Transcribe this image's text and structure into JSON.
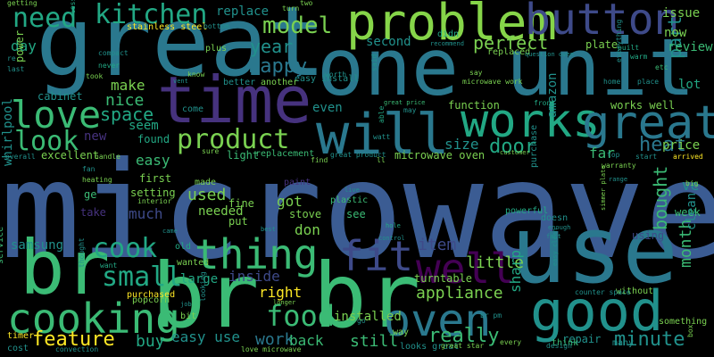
{
  "background_color": "#000000",
  "words": [
    {
      "text": "microwave",
      "color": "#3b5c93"
    },
    {
      "text": "great",
      "color": "#2a788e"
    },
    {
      "text": "one unit",
      "color": "#2a788e"
    },
    {
      "text": "time",
      "color": "#46327e"
    },
    {
      "text": "use",
      "color": "#2a788e"
    },
    {
      "text": "br",
      "color": "#3bbb75"
    },
    {
      "text": "br br",
      "color": "#3bbb75"
    },
    {
      "text": "problem",
      "color": "#86d549"
    },
    {
      "text": "button",
      "color": "#3e4a89"
    },
    {
      "text": "good",
      "color": "#21918c"
    },
    {
      "text": "will",
      "color": "#2a788e"
    },
    {
      "text": "works",
      "color": "#22a884"
    },
    {
      "text": "great",
      "color": "#2a788e"
    },
    {
      "text": "love",
      "color": "#3bbb75"
    },
    {
      "text": "cooking",
      "color": "#3bbb75"
    },
    {
      "text": "oven",
      "color": "#2a788e"
    },
    {
      "text": "well",
      "color": "#440154"
    },
    {
      "text": "fit",
      "color": "#3e4a89"
    },
    {
      "text": "thing",
      "color": "#3bbb75"
    },
    {
      "text": "small",
      "color": "#22a884"
    },
    {
      "text": "kitchen",
      "color": "#22a884"
    },
    {
      "text": "product",
      "color": "#7ad151"
    },
    {
      "text": "look",
      "color": "#3bbb75"
    },
    {
      "text": "need",
      "color": "#22a884"
    },
    {
      "text": "model",
      "color": "#7ad151"
    },
    {
      "text": "food",
      "color": "#3bbb75"
    },
    {
      "text": "cook",
      "color": "#22a884"
    },
    {
      "text": "feature",
      "color": "#fde725"
    },
    {
      "text": "minute",
      "color": "#21918c"
    },
    {
      "text": "really",
      "color": "#3bbb75"
    },
    {
      "text": "perfect",
      "color": "#7ad151"
    },
    {
      "text": "door",
      "color": "#22a884"
    },
    {
      "text": "heat",
      "color": "#2a788e"
    },
    {
      "text": "happy",
      "color": "#2a788e"
    },
    {
      "text": "space",
      "color": "#22a884"
    },
    {
      "text": "nice",
      "color": "#3bbb75"
    },
    {
      "text": "year",
      "color": "#21918c"
    },
    {
      "text": "part",
      "color": "#21918c"
    },
    {
      "text": "bought",
      "color": "#3bbb75"
    },
    {
      "text": "month",
      "color": "#3bbb75"
    },
    {
      "text": "appliance",
      "color": "#7ad151"
    },
    {
      "text": "right",
      "color": "#fde725"
    },
    {
      "text": "work",
      "color": "#2a788e"
    },
    {
      "text": "back",
      "color": "#3bbb75"
    },
    {
      "text": "still",
      "color": "#3bbb75"
    },
    {
      "text": "easy use",
      "color": "#21918c"
    },
    {
      "text": "buy",
      "color": "#22a884"
    },
    {
      "text": "used",
      "color": "#7ad151"
    },
    {
      "text": "much",
      "color": "#3e4a89"
    },
    {
      "text": "little",
      "color": "#7ad151"
    },
    {
      "text": "item",
      "color": "#3e4a89"
    },
    {
      "text": "sharp",
      "color": "#22a884"
    },
    {
      "text": "got",
      "color": "#7ad151"
    },
    {
      "text": "don",
      "color": "#7ad151"
    },
    {
      "text": "inside",
      "color": "#3e4a89"
    },
    {
      "text": "large",
      "color": "#22a884"
    },
    {
      "text": "size",
      "color": "#21918c"
    },
    {
      "text": "far",
      "color": "#3bbb75"
    },
    {
      "text": "price",
      "color": "#7ad151"
    },
    {
      "text": "seem",
      "color": "#22a884"
    },
    {
      "text": "make",
      "color": "#7ad151"
    },
    {
      "text": "even",
      "color": "#21918c"
    },
    {
      "text": "easy",
      "color": "#3bbb75"
    },
    {
      "text": "new",
      "color": "#46327e"
    },
    {
      "text": "day",
      "color": "#22a884"
    },
    {
      "text": "second",
      "color": "#21918c"
    },
    {
      "text": "review",
      "color": "#3bbb75"
    },
    {
      "text": "now",
      "color": "#7ad151"
    },
    {
      "text": "issue",
      "color": "#7ad151"
    },
    {
      "text": "ve",
      "color": "#21918c"
    },
    {
      "text": "replace",
      "color": "#21918c"
    },
    {
      "text": "lot",
      "color": "#22a884"
    },
    {
      "text": "amazon",
      "color": "#21918c"
    },
    {
      "text": "samsung",
      "color": "#21918c"
    },
    {
      "text": "installed",
      "color": "#7ad151"
    },
    {
      "text": "needed",
      "color": "#7ad151"
    },
    {
      "text": "week",
      "color": "#3bbb75"
    },
    {
      "text": "clean",
      "color": "#21918c"
    },
    {
      "text": "function",
      "color": "#7ad151"
    },
    {
      "text": "works well",
      "color": "#7ad151"
    },
    {
      "text": "microwave oven",
      "color": "#7ad151"
    },
    {
      "text": "put",
      "color": "#7ad151"
    },
    {
      "text": "stove",
      "color": "#7ad151"
    },
    {
      "text": "plate",
      "color": "#7ad151"
    },
    {
      "text": "setting",
      "color": "#7ad151"
    },
    {
      "text": "whirlpool",
      "color": "#21918c"
    },
    {
      "text": "light",
      "color": "#3bbb75"
    },
    {
      "text": "found",
      "color": "#22a884"
    },
    {
      "text": "first",
      "color": "#7ad151"
    },
    {
      "text": "excellent",
      "color": "#7ad151"
    },
    {
      "text": "replacement",
      "color": "#3bbb75"
    },
    {
      "text": "using",
      "color": "#3e4a89"
    },
    {
      "text": "ge",
      "color": "#3bbb75"
    },
    {
      "text": "take",
      "color": "#46327e"
    },
    {
      "text": "fine",
      "color": "#7ad151"
    },
    {
      "text": "paint",
      "color": "#46327e"
    },
    {
      "text": "see",
      "color": "#3bbb75"
    },
    {
      "text": "plastic",
      "color": "#3bbb75"
    },
    {
      "text": "turntable",
      "color": "#7ad151"
    },
    {
      "text": "repair",
      "color": "#21918c"
    },
    {
      "text": "looks great",
      "color": "#21918c"
    },
    {
      "text": "stainless steel",
      "color": "#fde725"
    },
    {
      "text": "didn",
      "color": "#22a884"
    },
    {
      "text": "replaced",
      "color": "#7ad151"
    },
    {
      "text": "easy install",
      "color": "#21918c"
    },
    {
      "text": "plus",
      "color": "#7ad151"
    },
    {
      "text": "cabinet",
      "color": "#21918c"
    },
    {
      "text": "power",
      "color": "#7ad151"
    },
    {
      "text": "popcorn",
      "color": "#7ad151"
    },
    {
      "text": "another",
      "color": "#7ad151"
    },
    {
      "text": "better",
      "color": "#21918c"
    },
    {
      "text": "come",
      "color": "#21918c"
    },
    {
      "text": "made",
      "color": "#7ad151"
    },
    {
      "text": "old",
      "color": "#22a884"
    },
    {
      "text": "wanted",
      "color": "#7ad151"
    },
    {
      "text": "purchased",
      "color": "#fde725"
    },
    {
      "text": "bit",
      "color": "#7ad151"
    },
    {
      "text": "timer",
      "color": "#fde725"
    },
    {
      "text": "cost",
      "color": "#21918c"
    },
    {
      "text": "way",
      "color": "#7ad151"
    },
    {
      "text": "go",
      "color": "#21918c"
    },
    {
      "text": "without",
      "color": "#7ad151"
    },
    {
      "text": "something",
      "color": "#7ad151"
    },
    {
      "text": "think",
      "color": "#3bbb75"
    },
    {
      "text": "many",
      "color": "#21918c"
    },
    {
      "text": "counter space",
      "color": "#21918c"
    },
    {
      "text": "purchase",
      "color": "#21918c"
    },
    {
      "text": "warranty",
      "color": "#7ad151"
    },
    {
      "text": "arrived",
      "color": "#fde725"
    },
    {
      "text": "powerful",
      "color": "#22a884"
    },
    {
      "text": "interior",
      "color": "#7ad151"
    },
    {
      "text": "fan",
      "color": "#21918c"
    },
    {
      "text": "heating",
      "color": "#7ad151"
    },
    {
      "text": "overall",
      "color": "#21918c"
    },
    {
      "text": "handle",
      "color": "#7ad151"
    },
    {
      "text": "service",
      "color": "#3bbb75"
    },
    {
      "text": "thought",
      "color": "#21918c"
    },
    {
      "text": "want",
      "color": "#22a884"
    },
    {
      "text": "convection",
      "color": "#21918c"
    },
    {
      "text": "love microwave",
      "color": "#7ad151"
    },
    {
      "text": "great star",
      "color": "#7ad151"
    },
    {
      "text": "br pm",
      "color": "#21918c"
    },
    {
      "text": "every",
      "color": "#7ad151"
    },
    {
      "text": "design",
      "color": "#21918c"
    },
    {
      "text": "box",
      "color": "#7ad151"
    },
    {
      "text": "getting",
      "color": "#7ad151"
    },
    {
      "text": "less",
      "color": "#22a884"
    },
    {
      "text": "turn",
      "color": "#7ad151"
    },
    {
      "text": "two",
      "color": "#7ad151"
    },
    {
      "text": "bottom",
      "color": "#21918c"
    },
    {
      "text": "compact",
      "color": "#21918c"
    },
    {
      "text": "never",
      "color": "#22a884"
    },
    {
      "text": "took",
      "color": "#7ad151"
    },
    {
      "text": "know",
      "color": "#7ad151"
    },
    {
      "text": "worth",
      "color": "#21918c"
    },
    {
      "text": "said",
      "color": "#21918c"
    },
    {
      "text": "say",
      "color": "#7ad151"
    },
    {
      "text": "microwave work",
      "color": "#7ad151"
    },
    {
      "text": "great price",
      "color": "#3bbb75"
    },
    {
      "text": "may",
      "color": "#21918c"
    },
    {
      "text": "front",
      "color": "#22a884"
    },
    {
      "text": "home",
      "color": "#21918c"
    },
    {
      "text": "place",
      "color": "#21918c"
    },
    {
      "text": "etc",
      "color": "#3bbb75"
    },
    {
      "text": "warm",
      "color": "#22a884"
    },
    {
      "text": "built",
      "color": "#22a884"
    },
    {
      "text": "everything",
      "color": "#21918c"
    },
    {
      "text": "question oven",
      "color": "#21918c"
    },
    {
      "text": "recommend",
      "color": "#21918c"
    },
    {
      "text": "watt",
      "color": "#21918c"
    },
    {
      "text": "able",
      "color": "#22a884"
    },
    {
      "text": "customer",
      "color": "#7ad151"
    },
    {
      "text": "great product",
      "color": "#21918c"
    },
    {
      "text": "find",
      "color": "#7ad151"
    },
    {
      "text": "sure",
      "color": "#7ad151"
    },
    {
      "text": "start",
      "color": "#21918c"
    },
    {
      "text": "top",
      "color": "#21918c"
    },
    {
      "text": "big",
      "color": "#7ad151"
    },
    {
      "text": "range",
      "color": "#21918c"
    },
    {
      "text": "best",
      "color": "#21918c"
    },
    {
      "text": "came",
      "color": "#21918c"
    },
    {
      "text": "control",
      "color": "#21918c"
    },
    {
      "text": "enough",
      "color": "#21918c"
    },
    {
      "text": "fast",
      "color": "#21918c"
    },
    {
      "text": "hole",
      "color": "#22a884"
    },
    {
      "text": "doesn",
      "color": "#21918c"
    },
    {
      "text": "simmer plate",
      "color": "#7ad151"
    },
    {
      "text": "longer",
      "color": "#7ad151"
    },
    {
      "text": "live",
      "color": "#21918c"
    },
    {
      "text": "looking",
      "color": "#21918c"
    },
    {
      "text": "job",
      "color": "#21918c"
    },
    {
      "text": "re",
      "color": "#21918c"
    },
    {
      "text": "last",
      "color": "#21918c"
    },
    {
      "text": "ll",
      "color": "#7ad151"
    },
    {
      "text": "easy clean",
      "color": "#21918c"
    },
    {
      "text": "vent",
      "color": "#21918c"
    }
  ]
}
